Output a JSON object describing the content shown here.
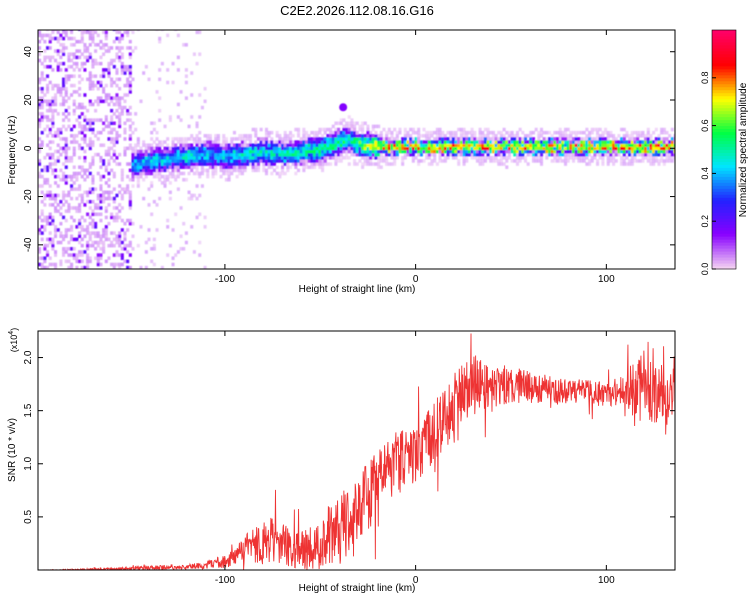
{
  "title": "C2E2.2026.112.08.16.G16",
  "chart_data": [
    {
      "type": "heatmap",
      "name": "spectrogram",
      "xlabel": "Height of straight line (km)",
      "ylabel": "Frequency (Hz)",
      "xlim": [
        -198,
        136
      ],
      "ylim": [
        -50,
        49
      ],
      "xticks": [
        -100,
        0,
        100
      ],
      "xtick_labels": [
        "-100",
        "0",
        "100"
      ],
      "yticks": [
        -40,
        -20,
        0,
        20,
        40
      ],
      "ytick_labels": [
        "-40",
        "-20",
        "0",
        "20",
        "40"
      ],
      "colorbar": {
        "label": "Normalized spectral amplitude",
        "range": [
          0,
          1
        ],
        "ticks": [
          0.0,
          0.2,
          0.4,
          0.6,
          0.8
        ],
        "tick_labels": [
          "0.0",
          "0.2",
          "0.4",
          "0.6",
          "0.8"
        ],
        "colors": [
          "#f2cff2",
          "#8800ff",
          "#2222ff",
          "#00e5ff",
          "#00ff44",
          "#ffff00",
          "#ff0000",
          "#ff0066"
        ]
      },
      "ridge": {
        "x": [
          -150,
          -140,
          -130,
          -120,
          -110,
          -100,
          -90,
          -80,
          -70,
          -60,
          -50,
          -40,
          -35,
          -30,
          -20,
          -10,
          0,
          20,
          40,
          60,
          80,
          100,
          120,
          135
        ],
        "frequency": [
          -8,
          -6,
          -5,
          -4,
          -3,
          -4,
          -3,
          -2,
          -3,
          -2,
          -1,
          2,
          3,
          1,
          0,
          0,
          0,
          0,
          0,
          0,
          0,
          0,
          0,
          0
        ],
        "amplitude": [
          0.4,
          0.45,
          0.45,
          0.5,
          0.45,
          0.45,
          0.5,
          0.5,
          0.5,
          0.55,
          0.55,
          0.55,
          0.5,
          0.6,
          0.8,
          0.8,
          0.85,
          0.85,
          0.85,
          0.85,
          0.85,
          0.85,
          0.85,
          0.85
        ]
      },
      "noise_region_x": [
        -198,
        -150
      ],
      "isolated_blob": {
        "x": -38,
        "frequency": 17,
        "amplitude": 0.15
      }
    },
    {
      "type": "line",
      "name": "snr",
      "xlabel": "Height of straight line (km)",
      "ylabel": "SNR (10 * v/v)",
      "scale_label": "(x10",
      "scale_exponent": "4",
      "xlim": [
        -198,
        136
      ],
      "ylim": [
        0,
        2.25
      ],
      "xticks": [
        -100,
        0,
        100
      ],
      "xtick_labels": [
        "-100",
        "0",
        "100"
      ],
      "yticks": [
        0.5,
        1.0,
        1.5,
        2.0
      ],
      "ytick_labels": [
        "0.5",
        "1.0",
        "1.5",
        "2.0"
      ],
      "color": "#ee3333",
      "series": [
        {
          "name": "SNR",
          "x": [
            -198,
            -180,
            -160,
            -140,
            -120,
            -110,
            -100,
            -95,
            -90,
            -85,
            -80,
            -75,
            -70,
            -65,
            -60,
            -55,
            -50,
            -45,
            -40,
            -35,
            -30,
            -25,
            -20,
            -15,
            -10,
            -5,
            0,
            5,
            10,
            15,
            20,
            25,
            30,
            35,
            40,
            50,
            60,
            70,
            80,
            90,
            100,
            110,
            115,
            120,
            125,
            130,
            136
          ],
          "values": [
            0.0,
            0.0,
            0.01,
            0.02,
            0.03,
            0.05,
            0.08,
            0.12,
            0.18,
            0.22,
            0.25,
            0.3,
            0.25,
            0.2,
            0.18,
            0.2,
            0.25,
            0.35,
            0.4,
            0.45,
            0.5,
            0.7,
            0.85,
            0.95,
            1.0,
            1.05,
            1.1,
            1.2,
            1.3,
            1.4,
            1.55,
            1.65,
            1.75,
            1.75,
            1.72,
            1.75,
            1.72,
            1.7,
            1.68,
            1.67,
            1.66,
            1.7,
            1.72,
            1.7,
            1.68,
            1.65,
            1.65
          ],
          "spread": [
            0.0,
            0.01,
            0.01,
            0.02,
            0.02,
            0.04,
            0.06,
            0.1,
            0.14,
            0.17,
            0.2,
            0.22,
            0.2,
            0.18,
            0.18,
            0.2,
            0.25,
            0.3,
            0.32,
            0.35,
            0.35,
            0.35,
            0.3,
            0.3,
            0.3,
            0.28,
            0.28,
            0.3,
            0.3,
            0.3,
            0.3,
            0.3,
            0.3,
            0.25,
            0.2,
            0.18,
            0.15,
            0.13,
            0.12,
            0.12,
            0.12,
            0.15,
            0.3,
            0.32,
            0.3,
            0.3,
            0.25
          ]
        }
      ]
    }
  ]
}
